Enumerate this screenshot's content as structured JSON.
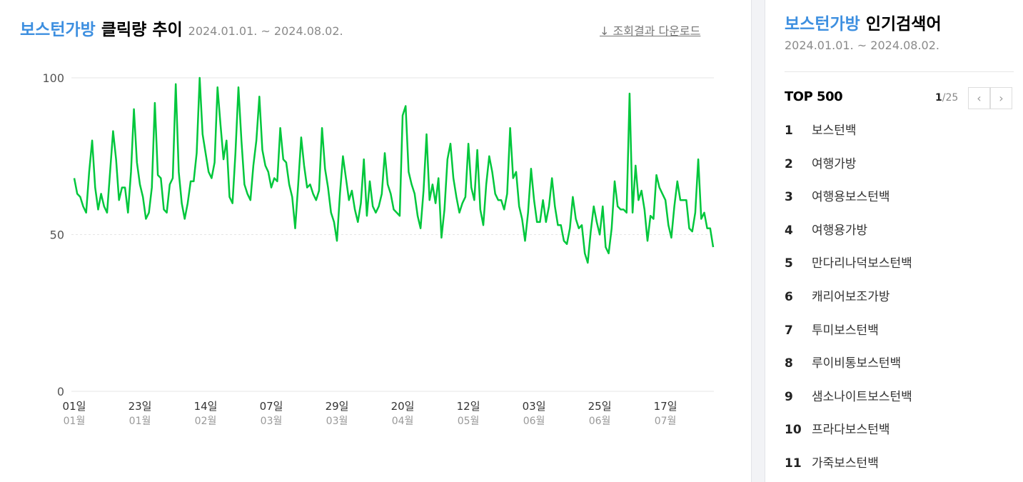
{
  "chart_title": {
    "keyword": "보스턴가방",
    "suffix": "클릭량 추이",
    "period": "2024.01.01. ~ 2024.08.02."
  },
  "download": "조회결과 다운로드",
  "chart_data": {
    "type": "line",
    "color": "#00c73c",
    "ylim": [
      0,
      100
    ],
    "yticks": [
      0,
      50,
      100
    ],
    "grid": true,
    "categories": [
      [
        "01일",
        "01월"
      ],
      null,
      null,
      null,
      null,
      null,
      null,
      null,
      null,
      null,
      null,
      null,
      null,
      null,
      null,
      null,
      null,
      null,
      null,
      null,
      null,
      null,
      [
        "23일",
        "01월"
      ],
      null,
      null,
      null,
      null,
      null,
      null,
      null,
      null,
      null,
      null,
      null,
      null,
      null,
      null,
      null,
      null,
      null,
      null,
      null,
      null,
      null,
      [
        "14일",
        "02월"
      ],
      null,
      null,
      null,
      null,
      null,
      null,
      null,
      null,
      null,
      null,
      null,
      null,
      null,
      null,
      null,
      null,
      null,
      null,
      null,
      null,
      null,
      [
        "07일",
        "03월"
      ],
      null,
      null,
      null,
      null,
      null,
      null,
      null,
      null,
      null,
      null,
      null,
      null,
      null,
      null,
      null,
      null,
      null,
      null,
      null,
      null,
      null,
      [
        "29일",
        "03월"
      ],
      null,
      null,
      null,
      null,
      null,
      null,
      null,
      null,
      null,
      null,
      null,
      null,
      null,
      null,
      null,
      null,
      null,
      null,
      null,
      null,
      null,
      [
        "20일",
        "04월"
      ],
      null,
      null,
      null,
      null,
      null,
      null,
      null,
      null,
      null,
      null,
      null,
      null,
      null,
      null,
      null,
      null,
      null,
      null,
      null,
      null,
      null,
      [
        "12일",
        "05월"
      ],
      null,
      null,
      null,
      null,
      null,
      null,
      null,
      null,
      null,
      null,
      null,
      null,
      null,
      null,
      null,
      null,
      null,
      null,
      null,
      null,
      null,
      [
        "03일",
        "06월"
      ],
      null,
      null,
      null,
      null,
      null,
      null,
      null,
      null,
      null,
      null,
      null,
      null,
      null,
      null,
      null,
      null,
      null,
      null,
      null,
      null,
      null,
      [
        "25일",
        "06월"
      ],
      null,
      null,
      null,
      null,
      null,
      null,
      null,
      null,
      null,
      null,
      null,
      null,
      null,
      null,
      null,
      null,
      null,
      null,
      null,
      null,
      null,
      [
        "17일",
        "07월"
      ],
      null,
      null,
      null,
      null,
      null,
      null,
      null,
      null,
      null,
      null,
      null,
      null,
      null,
      null,
      null,
      null
    ],
    "values": [
      68,
      63,
      62,
      59,
      57,
      70,
      80,
      65,
      58,
      63,
      59,
      57,
      70,
      83,
      74,
      61,
      65,
      65,
      57,
      70,
      90,
      73,
      66,
      62,
      55,
      57,
      65,
      92,
      69,
      68,
      58,
      57,
      66,
      68,
      98,
      70,
      60,
      55,
      60,
      67,
      67,
      76,
      100,
      82,
      76,
      70,
      68,
      73,
      97,
      85,
      74,
      80,
      62,
      60,
      76,
      97,
      80,
      66,
      63,
      61,
      72,
      80,
      94,
      77,
      72,
      70,
      65,
      68,
      67,
      84,
      74,
      73,
      66,
      62,
      52,
      66,
      81,
      72,
      65,
      66,
      63,
      61,
      64,
      84,
      71,
      65,
      57,
      54,
      48,
      63,
      75,
      68,
      61,
      64,
      58,
      54,
      60,
      74,
      56,
      67,
      59,
      57,
      59,
      63,
      76,
      66,
      63,
      58,
      57,
      56,
      88,
      91,
      70,
      66,
      63,
      56,
      52,
      64,
      82,
      61,
      66,
      60,
      68,
      49,
      58,
      74,
      79,
      68,
      62,
      57,
      60,
      62,
      79,
      65,
      61,
      77,
      58,
      53,
      66,
      75,
      70,
      63,
      61,
      61,
      58,
      63,
      84,
      68,
      70,
      59,
      55,
      48,
      57,
      71,
      61,
      54,
      54,
      61,
      54,
      59,
      68,
      59,
      53,
      53,
      48,
      47,
      52,
      62,
      55,
      52,
      53,
      44,
      41,
      51,
      59,
      54,
      50,
      59,
      46,
      44,
      52,
      67,
      59,
      58,
      58,
      57,
      95,
      57,
      72,
      61,
      64,
      58,
      48,
      56,
      55,
      69,
      65,
      63,
      61,
      53,
      49,
      59,
      67,
      61,
      61,
      61,
      52,
      51,
      57,
      74,
      55,
      57,
      52,
      52,
      46
    ]
  },
  "popular": {
    "keyword": "보스턴가방",
    "title": "인기검색어",
    "period": "2024.01.01. ~ 2024.08.02.",
    "top_label": "TOP 500",
    "page_current": "1",
    "page_total": "/25",
    "items": [
      {
        "rank": 1,
        "keyword": "보스턴백"
      },
      {
        "rank": 2,
        "keyword": "여행가방"
      },
      {
        "rank": 3,
        "keyword": "여행용보스턴백"
      },
      {
        "rank": 4,
        "keyword": "여행용가방"
      },
      {
        "rank": 5,
        "keyword": "만다리나덕보스턴백"
      },
      {
        "rank": 6,
        "keyword": "캐리어보조가방"
      },
      {
        "rank": 7,
        "keyword": "투미보스턴백"
      },
      {
        "rank": 8,
        "keyword": "루이비통보스턴백"
      },
      {
        "rank": 9,
        "keyword": "샘소나이트보스턴백"
      },
      {
        "rank": 10,
        "keyword": "프라다보스턴백"
      },
      {
        "rank": 11,
        "keyword": "가죽보스턴백"
      }
    ]
  }
}
